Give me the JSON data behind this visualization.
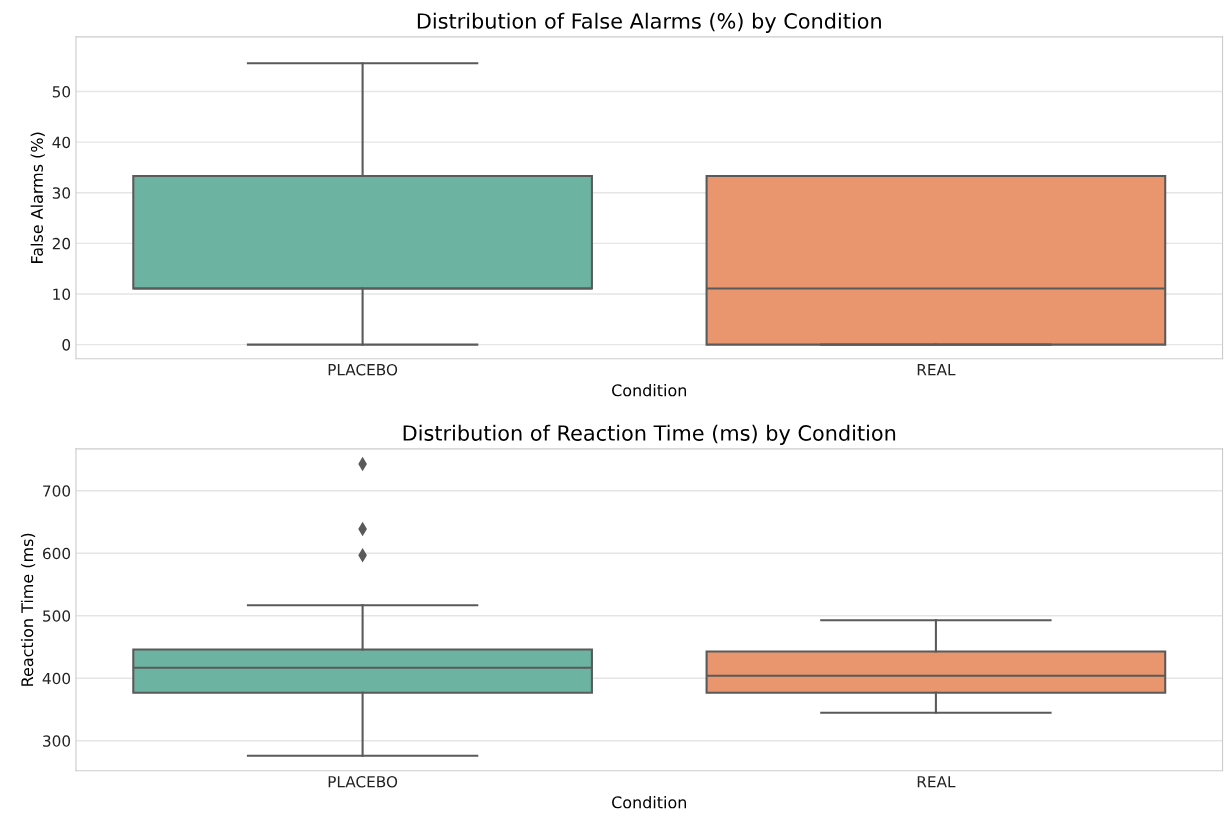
{
  "chart_data": [
    {
      "type": "box",
      "title": "Distribution of False Alarms (%) by Condition",
      "xlabel": "Condition",
      "ylabel": "False Alarms (%)",
      "categories": [
        "PLACEBO",
        "REAL"
      ],
      "colors": [
        "#6db3a1",
        "#e9966f"
      ],
      "boxes": [
        {
          "low": 0,
          "q1": 11.1,
          "median": 11.1,
          "q3": 33.3,
          "high": 55.6
        },
        {
          "low": 0,
          "q1": 0,
          "median": 11.1,
          "q3": 33.3,
          "high": 33.3
        }
      ],
      "ylim": [
        -2.8,
        60.8
      ],
      "yticks": [
        0,
        10,
        20,
        30,
        40,
        50
      ],
      "grid": "y"
    },
    {
      "type": "box",
      "title": "Distribution of Reaction Time (ms) by Condition",
      "xlabel": "Condition",
      "ylabel": "Reaction Time (ms)",
      "categories": [
        "PLACEBO",
        "REAL"
      ],
      "colors": [
        "#6db3a1",
        "#e9966f"
      ],
      "boxes": [
        {
          "low": 276,
          "q1": 377,
          "median": 417,
          "q3": 446,
          "high": 517,
          "outliers": [
            597,
            639,
            743
          ]
        },
        {
          "low": 345,
          "q1": 377,
          "median": 404,
          "q3": 443,
          "high": 493
        }
      ],
      "ylim": [
        252,
        767
      ],
      "yticks": [
        300,
        400,
        500,
        600,
        700
      ],
      "grid": "y",
      "marker": "diamond"
    }
  ]
}
